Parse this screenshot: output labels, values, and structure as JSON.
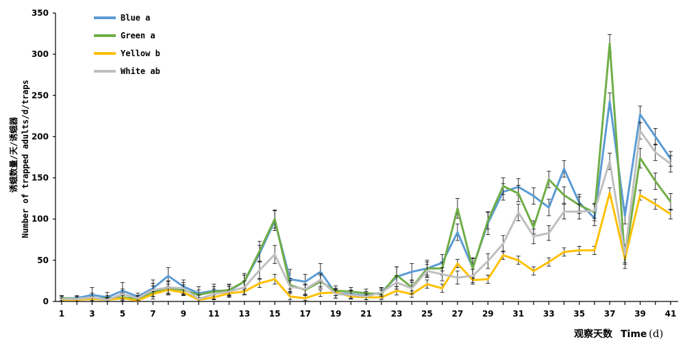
{
  "chart_data": {
    "type": "line",
    "xlabel_cn": "观察天数",
    "xlabel_en": "Time",
    "xlabel_unit": "(d)",
    "ylabel_cn": "诱蛾数量/天/诱蛾器",
    "ylabel_en": "Number of trapped adults/d/traps",
    "ylim": [
      0,
      350
    ],
    "yticks": [
      0,
      50,
      100,
      150,
      200,
      250,
      300,
      350
    ],
    "xlim": [
      1,
      41
    ],
    "xticks": [
      1,
      3,
      5,
      7,
      9,
      11,
      13,
      15,
      17,
      19,
      21,
      23,
      25,
      27,
      29,
      31,
      33,
      35,
      37,
      39,
      41
    ],
    "legend_position": "top-left",
    "grid": false,
    "x": [
      1,
      2,
      3,
      4,
      5,
      6,
      7,
      8,
      9,
      10,
      11,
      12,
      13,
      14,
      15,
      16,
      17,
      18,
      19,
      20,
      21,
      22,
      23,
      24,
      25,
      26,
      27,
      28,
      29,
      30,
      31,
      32,
      33,
      34,
      35,
      36,
      37,
      38,
      39,
      40,
      41
    ],
    "series": [
      {
        "name": "Blue a",
        "color": "#5b9bd5",
        "values": [
          4,
          4,
          8,
          5,
          13,
          6,
          16,
          31,
          18,
          10,
          13,
          13,
          24,
          58,
          98,
          27,
          24,
          36,
          10,
          9,
          7,
          11,
          30,
          36,
          40,
          47,
          84,
          41,
          95,
          133,
          139,
          128,
          114,
          161,
          120,
          101,
          243,
          104,
          227,
          200,
          173
        ],
        "errors": [
          3,
          3,
          9,
          6,
          10,
          4,
          10,
          10,
          8,
          8,
          8,
          8,
          8,
          10,
          12,
          12,
          9,
          10,
          6,
          5,
          5,
          6,
          12,
          10,
          10,
          10,
          10,
          12,
          14,
          10,
          10,
          10,
          10,
          10,
          10,
          9,
          10,
          10,
          10,
          10,
          9
        ]
      },
      {
        "name": "Green a",
        "color": "#70ad47",
        "values": [
          4,
          3,
          3,
          4,
          5,
          3,
          11,
          16,
          14,
          8,
          12,
          14,
          24,
          61,
          100,
          20,
          14,
          24,
          13,
          12,
          10,
          9,
          32,
          17,
          40,
          40,
          113,
          40,
          98,
          140,
          131,
          90,
          148,
          129,
          117,
          108,
          313,
          50,
          174,
          146,
          121
        ],
        "errors": [
          3,
          3,
          3,
          3,
          5,
          3,
          8,
          8,
          6,
          6,
          6,
          6,
          10,
          12,
          11,
          8,
          6,
          8,
          6,
          5,
          5,
          5,
          10,
          8,
          8,
          8,
          12,
          12,
          10,
          10,
          10,
          8,
          10,
          10,
          10,
          10,
          11,
          10,
          12,
          10,
          10
        ]
      },
      {
        "name": "Yellow b",
        "color": "#ffc000",
        "values": [
          2,
          2,
          3,
          2,
          4,
          1,
          9,
          14,
          11,
          2,
          5,
          10,
          12,
          22,
          27,
          6,
          4,
          10,
          11,
          6,
          5,
          5,
          13,
          9,
          21,
          16,
          46,
          26,
          27,
          56,
          50,
          37,
          48,
          60,
          62,
          62,
          132,
          52,
          129,
          118,
          106
        ],
        "errors": [
          2,
          2,
          2,
          2,
          3,
          1,
          3,
          4,
          4,
          3,
          3,
          3,
          4,
          5,
          6,
          4,
          3,
          4,
          4,
          3,
          3,
          3,
          5,
          4,
          5,
          5,
          5,
          5,
          5,
          5,
          5,
          5,
          5,
          5,
          5,
          5,
          6,
          5,
          6,
          6,
          6
        ]
      },
      {
        "name": "White ab",
        "color": "#bfbfbf",
        "values": [
          3,
          3,
          5,
          2,
          9,
          4,
          14,
          17,
          16,
          3,
          9,
          12,
          17,
          38,
          57,
          18,
          15,
          26,
          9,
          8,
          6,
          11,
          23,
          16,
          37,
          33,
          29,
          31,
          49,
          70,
          108,
          79,
          83,
          109,
          109,
          110,
          170,
          57,
          207,
          181,
          167
        ],
        "errors": [
          3,
          3,
          5,
          3,
          6,
          3,
          8,
          8,
          7,
          5,
          6,
          6,
          8,
          10,
          11,
          7,
          6,
          8,
          5,
          5,
          4,
          5,
          8,
          7,
          8,
          8,
          8,
          8,
          9,
          10,
          10,
          9,
          9,
          9,
          9,
          9,
          10,
          12,
          10,
          10,
          10
        ]
      }
    ]
  }
}
